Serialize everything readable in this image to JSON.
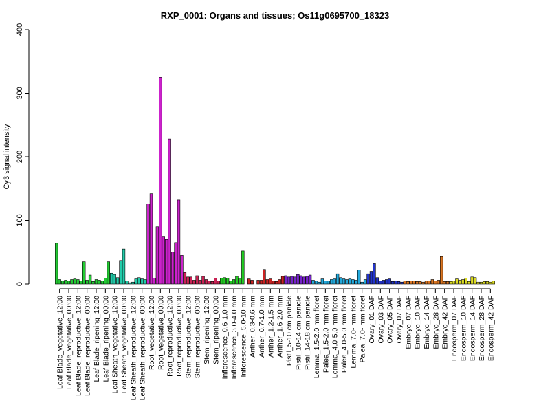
{
  "chart_data": {
    "type": "bar",
    "title": "RXP_0001: Organs and tissues; Os11g0695700_18323",
    "xlabel": "",
    "ylabel": "Cy3 signal intensity",
    "ylim": [
      0,
      400
    ],
    "yticks": [
      0,
      100,
      200,
      300,
      400
    ],
    "grid": false,
    "legend": "none",
    "groups": [
      {
        "label": "Leaf Blade_vegetative_12:00",
        "color": "#22cc33",
        "values": [
          64,
          7,
          5
        ]
      },
      {
        "label": "Leaf Blade_vegetative_00:00",
        "color": "#22cc33",
        "values": [
          6,
          5,
          7
        ]
      },
      {
        "label": "Leaf Blade_reproductive_12:00",
        "color": "#22cc33",
        "values": [
          8,
          7,
          5
        ]
      },
      {
        "label": "Leaf Blade_reproductive_00:00",
        "color": "#22cc33",
        "values": [
          35,
          6,
          14
        ]
      },
      {
        "label": "Leaf Blade_ripening_12:00",
        "color": "#22cc33",
        "values": [
          4,
          7,
          6
        ]
      },
      {
        "label": "Leaf Blade_ripening_00:00",
        "color": "#22cc33",
        "values": [
          5,
          9,
          35
        ]
      },
      {
        "label": "Leaf Sheath_vegetative_12:00",
        "color": "#22ccaa",
        "values": [
          17,
          15,
          10
        ]
      },
      {
        "label": "Leaf Sheath_vegetative_00:00",
        "color": "#22ccaa",
        "values": [
          37,
          55,
          5
        ]
      },
      {
        "label": "Leaf Sheath_reproductive_12:00",
        "color": "#22ccaa",
        "values": [
          2,
          3,
          8
        ]
      },
      {
        "label": "Leaf Sheath_reproductive_00:00",
        "color": "#22ccaa",
        "values": [
          10,
          8,
          7
        ]
      },
      {
        "label": "Root_vegetative_12:00",
        "color": "#cc22cc",
        "values": [
          126,
          142,
          9
        ]
      },
      {
        "label": "Root_vegetative_00:00",
        "color": "#cc22cc",
        "values": [
          90,
          325,
          75
        ]
      },
      {
        "label": "Root_reproductive_12:00",
        "color": "#cc22cc",
        "values": [
          70,
          228,
          50
        ]
      },
      {
        "label": "Root_reproductive_00:00",
        "color": "#cc22cc",
        "values": [
          65,
          132,
          45
        ]
      },
      {
        "label": "Stem_reproductive_12:00",
        "color": "#cc2255",
        "values": [
          18,
          11,
          11
        ]
      },
      {
        "label": "Stem_reproductive_00:00",
        "color": "#cc2255",
        "values": [
          6,
          13,
          6
        ]
      },
      {
        "label": "Stem_ripening_12:00",
        "color": "#cc2255",
        "values": [
          12,
          7,
          5
        ]
      },
      {
        "label": "Stem_ripening_00:00",
        "color": "#cc2255",
        "values": [
          4,
          9,
          5
        ]
      },
      {
        "label": "Inflorescence_0.6-1.0 mm",
        "color": "#22cc22",
        "values": [
          9,
          10,
          9
        ]
      },
      {
        "label": "Inflorescence_3.0-4.0 mm",
        "color": "#22cc22",
        "values": [
          5,
          7,
          12
        ]
      },
      {
        "label": "Inflorescence_5.0-10 mm",
        "color": "#22cc22",
        "values": [
          9,
          52,
          0
        ]
      },
      {
        "label": "Anther_0.3-0.6 mm",
        "color": "#cc2222",
        "values": [
          8,
          6,
          0
        ]
      },
      {
        "label": "Anther_0.7-1.0 mm",
        "color": "#cc2222",
        "values": [
          6,
          6,
          23
        ]
      },
      {
        "label": "Anther_1.2-1.5 mm",
        "color": "#cc2222",
        "values": [
          7,
          8,
          5
        ]
      },
      {
        "label": "Anther_1.6-2.0 mm",
        "color": "#cc2222",
        "values": [
          4,
          7,
          12
        ]
      },
      {
        "label": "Pistil_5-10 cm panicle",
        "color": "#7722cc",
        "values": [
          13,
          11,
          12
        ]
      },
      {
        "label": "Pistil_10-14 cm panicle",
        "color": "#7722cc",
        "values": [
          11,
          15,
          13
        ]
      },
      {
        "label": "Pistil_14-18 cm panicle",
        "color": "#7722cc",
        "values": [
          11,
          12,
          14
        ]
      },
      {
        "label": "Lemma_1.5-2.0 mm floret",
        "color": "#22aadd",
        "values": [
          6,
          5,
          3
        ]
      },
      {
        "label": "Palea_1.5-2.0 mm floret",
        "color": "#22aadd",
        "values": [
          8,
          5,
          5
        ]
      },
      {
        "label": "Lemma_4.0-5.0 mm floret",
        "color": "#22aadd",
        "values": [
          7,
          8,
          16
        ]
      },
      {
        "label": "Palea_4.0-5.0 mm floret",
        "color": "#22aadd",
        "values": [
          10,
          8,
          7
        ]
      },
      {
        "label": "Lemma_7.0- mm floret",
        "color": "#22aadd",
        "values": [
          8,
          7,
          6
        ]
      },
      {
        "label": "Palea_7.0- mm floret",
        "color": "#22aadd",
        "values": [
          22,
          3,
          7
        ]
      },
      {
        "label": "Ovary_01 DAF",
        "color": "#2233cc",
        "values": [
          16,
          20,
          32
        ]
      },
      {
        "label": "Ovary_03 DAF",
        "color": "#2233cc",
        "values": [
          10,
          5,
          6
        ]
      },
      {
        "label": "Ovary_05 DAF",
        "color": "#2233cc",
        "values": [
          7,
          8,
          4
        ]
      },
      {
        "label": "Ovary_07 DAF",
        "color": "#2233cc",
        "values": [
          5,
          4,
          3
        ]
      },
      {
        "label": "Embryo_07 DAF",
        "color": "#dd7722",
        "values": [
          5,
          4,
          5
        ]
      },
      {
        "label": "Embryo_10 DAF",
        "color": "#dd7722",
        "values": [
          5,
          4,
          4
        ]
      },
      {
        "label": "Embryo_14 DAF",
        "color": "#dd7722",
        "values": [
          3,
          5,
          5
        ]
      },
      {
        "label": "Embryo_28 DAF",
        "color": "#dd7722",
        "values": [
          7,
          5,
          6
        ]
      },
      {
        "label": "Embryo_42 DAF",
        "color": "#dd7722",
        "values": [
          43,
          4,
          4
        ]
      },
      {
        "label": "Endosperm_07 DAF",
        "color": "#dddd22",
        "values": [
          4,
          5,
          8
        ]
      },
      {
        "label": "Endosperm_10 DAF",
        "color": "#dddd22",
        "values": [
          6,
          7,
          9
        ]
      },
      {
        "label": "Endosperm_14 DAF",
        "color": "#dddd22",
        "values": [
          4,
          11,
          10
        ]
      },
      {
        "label": "Endosperm_28 DAF",
        "color": "#dddd22",
        "values": [
          3,
          3,
          4
        ]
      },
      {
        "label": "Endosperm_42 DAF",
        "color": "#dddd22",
        "values": [
          4,
          3,
          5
        ]
      }
    ]
  }
}
